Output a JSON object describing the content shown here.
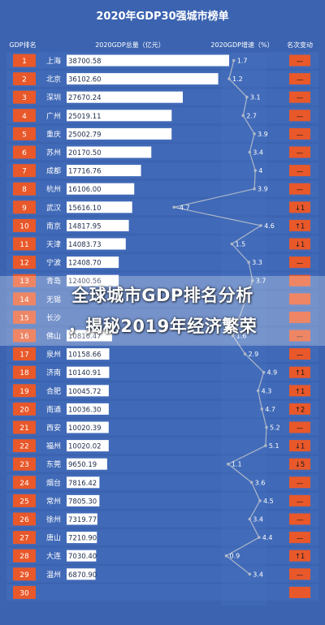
{
  "chart_data": {
    "type": "bar",
    "title": "2020年GDP30强城市榜单",
    "headers": {
      "rank": "GDP排名",
      "gdp": "2020GDP总量（亿元）",
      "growth": "2020GDP增速（%）",
      "change": "名次变动"
    },
    "ranks": [
      "1",
      "2",
      "3",
      "4",
      "5",
      "6",
      "7",
      "8",
      "9",
      "10",
      "11",
      "12",
      "13",
      "14",
      "15",
      "16",
      "17",
      "18",
      "19",
      "20",
      "21",
      "22",
      "23",
      "24",
      "25",
      "26",
      "27",
      "28",
      "29",
      "30"
    ],
    "categories": [
      "上海",
      "北京",
      "深圳",
      "广州",
      "重庆",
      "苏州",
      "成都",
      "杭州",
      "武汉",
      "南京",
      "天津",
      "宁波",
      "青岛",
      "无锡",
      "长沙",
      "佛山",
      "泉州",
      "济南",
      "合肥",
      "南通",
      "西安",
      "福州",
      "东莞",
      "烟台",
      "常州",
      "徐州",
      "唐山",
      "大连",
      "温州",
      ""
    ],
    "gdp_values": [
      38700.58,
      36102.6,
      27670.24,
      25019.11,
      25002.79,
      20170.5,
      17716.76,
      16106.0,
      15616.1,
      14817.95,
      14083.73,
      12408.7,
      12400.56,
      null,
      null,
      10816.47,
      10158.66,
      10140.91,
      10045.72,
      10036.3,
      10020.39,
      10020.02,
      9650.19,
      7816.42,
      7805.3,
      7319.77,
      7210.9,
      7030.4,
      6870.9,
      null
    ],
    "gdp_labels": [
      "38700.58",
      "36102.60",
      "27670.24",
      "25019.11",
      "25002.79",
      "20170.50",
      "17716.76",
      "16106.00",
      "15616.10",
      "14817.95",
      "14083.73",
      "12408.70",
      "12400.56",
      "",
      "",
      "10816.47",
      "10158.66",
      "10140.91",
      "10045.72",
      "10036.30",
      "10020.39",
      "10020.02",
      "9650.19",
      "7816.42",
      "7805.30",
      "7319.77",
      "7210.90",
      "7030.40",
      "6870.90",
      ""
    ],
    "growth": [
      1.7,
      1.2,
      3.1,
      2.7,
      3.9,
      3.4,
      4,
      3.9,
      -4.7,
      4.6,
      1.5,
      3.3,
      3.7,
      null,
      null,
      1.6,
      2.9,
      4.9,
      4.3,
      4.7,
      5.2,
      5.1,
      1.1,
      3.6,
      4.5,
      3.4,
      4.4,
      0.9,
      3.4,
      null
    ],
    "growth_labels": [
      "1.7",
      "1.2",
      "3.1",
      "2.7",
      "3.9",
      "3.4",
      "4",
      "3.9",
      "-4.7",
      "4.6",
      "1.5",
      "3.3",
      "3.7",
      "",
      "",
      "1.6",
      "2.9",
      "4.9",
      "4.3",
      "4.7",
      "5.2",
      "5.1",
      "1.1",
      "3.6",
      "4.5",
      "3.4",
      "4.4",
      "0.9",
      "3.4",
      ""
    ],
    "change_labels": [
      "—",
      "—",
      "—",
      "—",
      "—",
      "—",
      "—",
      "—",
      "↓1",
      "↑1",
      "↓1",
      "—",
      "",
      "",
      "",
      "—",
      "—",
      "↑1",
      "↑1",
      "↑2",
      "—",
      "↓1",
      "↓5",
      "—",
      "—",
      "—",
      "—",
      "↑1",
      "—",
      ""
    ],
    "xlim": [
      0,
      42000
    ]
  },
  "banner": {
    "line1": "全球城市GDP排名分析",
    "line2": "，揭秘2019年经济繁荣"
  },
  "colors": {
    "background": "#3b63b0",
    "panel": "#4a76c6",
    "badge": "#e8582a",
    "bar": "#ffffff",
    "line": "#aeb7c8",
    "text": "#ffffff"
  }
}
